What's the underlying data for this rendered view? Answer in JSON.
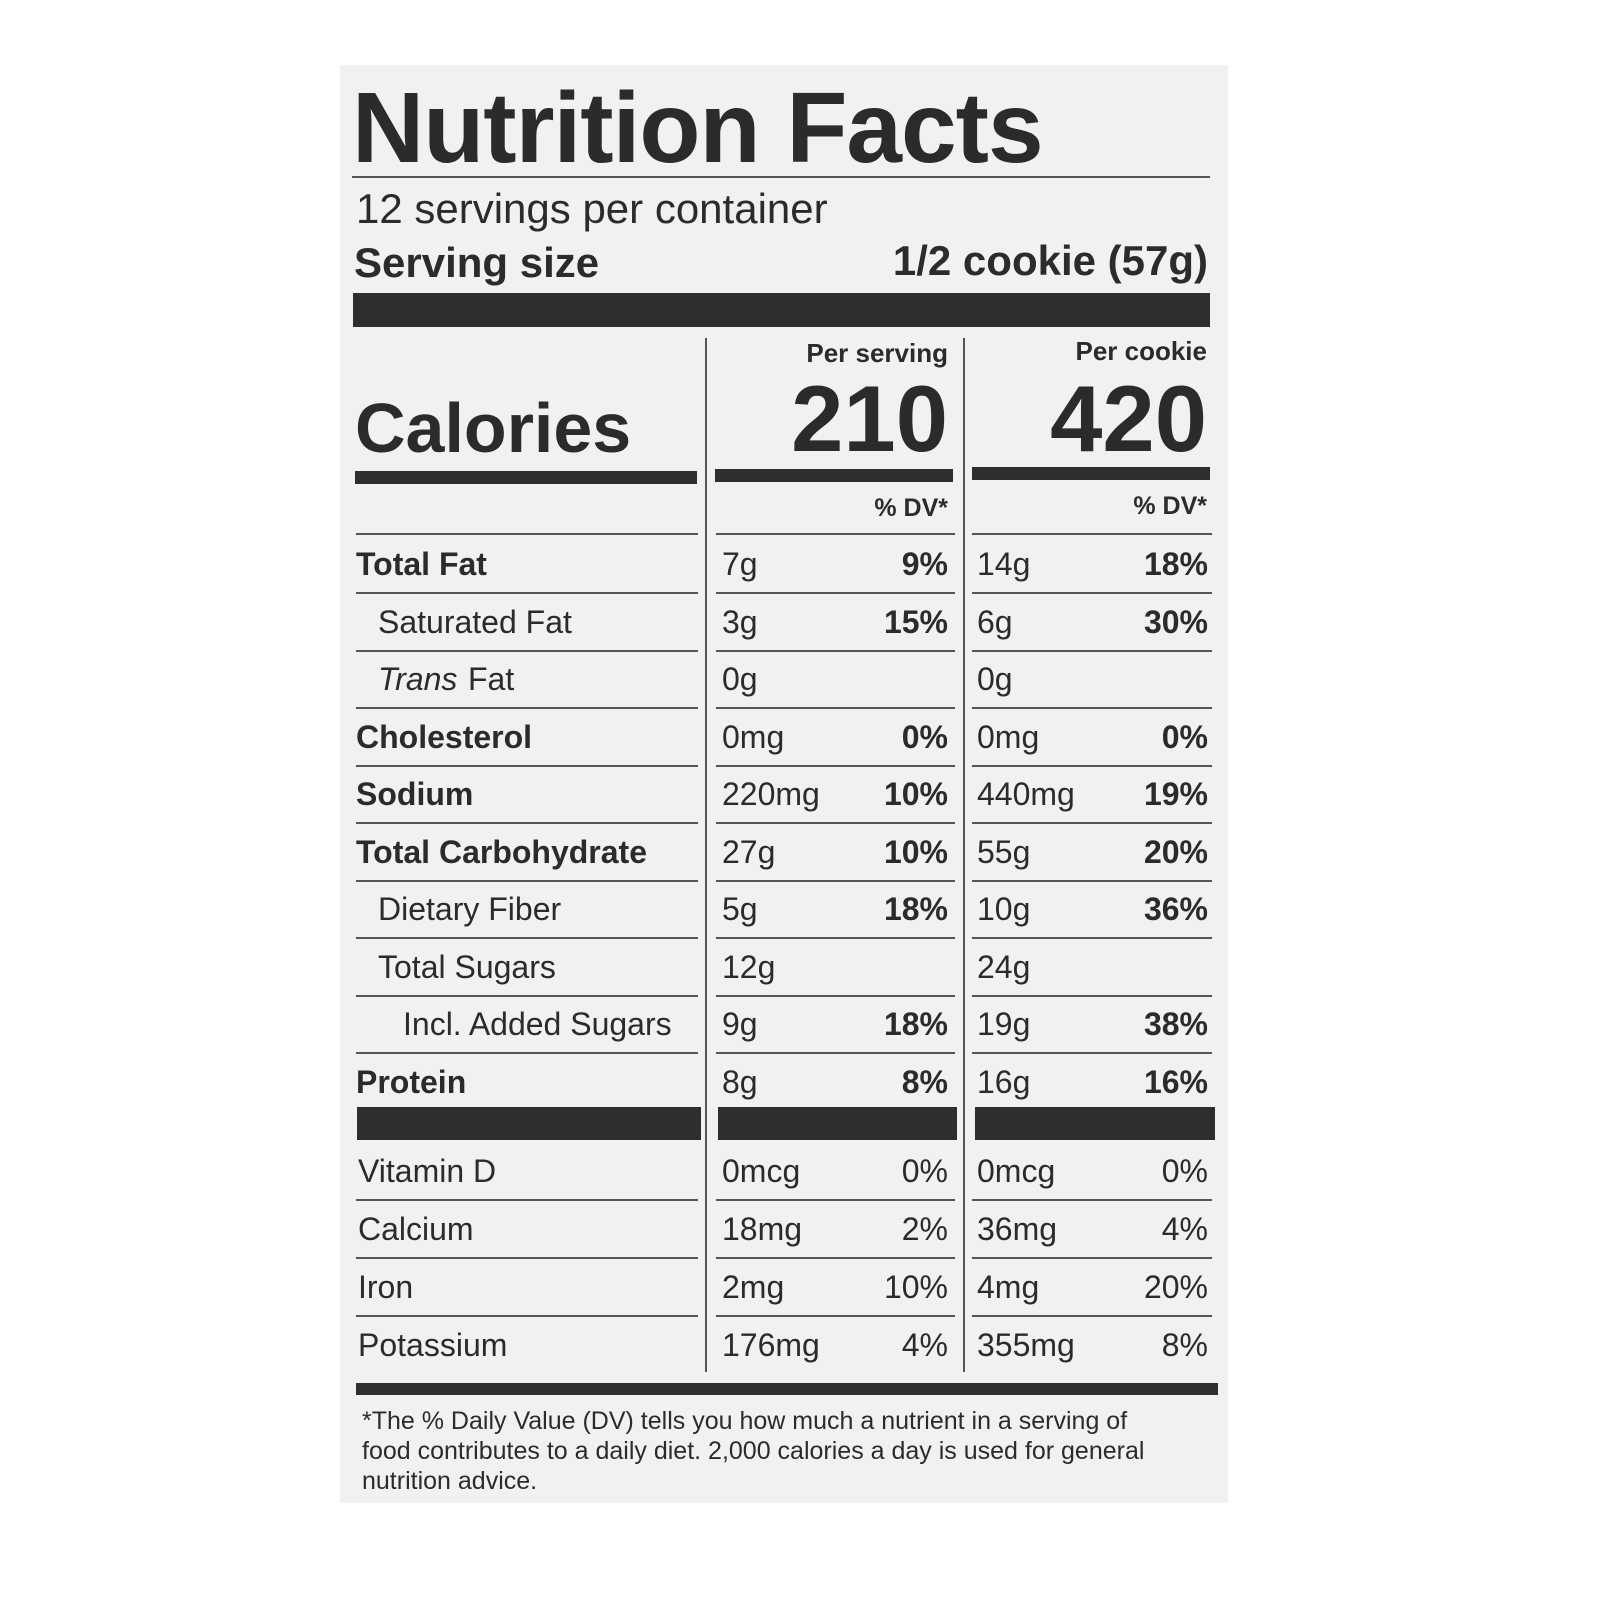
{
  "header": {
    "title": "Nutrition Facts",
    "servings": "12 servings per container",
    "serving_size_label": "Serving size",
    "serving_size_value": "1/2 cookie (57g)"
  },
  "columns": [
    "Per serving",
    "Per cookie"
  ],
  "calories": {
    "label": "Calories",
    "values": [
      "210",
      "420"
    ]
  },
  "dv_header": [
    "% DV*",
    "% DV*"
  ],
  "nutrients": [
    {
      "label": "Total Fat",
      "per_serving": "7g",
      "per_serving_dv": "9%",
      "per_cookie": "14g",
      "per_cookie_dv": "18%"
    },
    {
      "label": "Saturated Fat",
      "per_serving": "3g",
      "per_serving_dv": "15%",
      "per_cookie": "6g",
      "per_cookie_dv": "30%"
    },
    {
      "label": [
        "Trans",
        "Fat"
      ],
      "per_serving": "0g",
      "per_cookie": "0g"
    },
    {
      "label": "Cholesterol",
      "per_serving": "0mg",
      "per_serving_dv": "0%",
      "per_cookie": "0mg",
      "per_cookie_dv": "0%"
    },
    {
      "label": "Sodium",
      "per_serving": "220mg",
      "per_serving_dv": "10%",
      "per_cookie": "440mg",
      "per_cookie_dv": "19%"
    },
    {
      "label": "Total Carbohydrate",
      "per_serving": "27g",
      "per_serving_dv": "10%",
      "per_cookie": "55g",
      "per_cookie_dv": "20%"
    },
    {
      "label": "Dietary Fiber",
      "per_serving": "5g",
      "per_serving_dv": "18%",
      "per_cookie": "10g",
      "per_cookie_dv": "36%"
    },
    {
      "label": "Total Sugars",
      "per_serving": "12g",
      "per_cookie": "24g"
    },
    {
      "label": "Incl. Added Sugars",
      "per_serving": "9g",
      "per_serving_dv": "18%",
      "per_cookie": "19g",
      "per_cookie_dv": "38%"
    },
    {
      "label": "Protein",
      "per_serving": "8g",
      "per_serving_dv": "8%",
      "per_cookie": "16g",
      "per_cookie_dv": "16%"
    }
  ],
  "vitamins": [
    {
      "label": "Vitamin D",
      "per_serving": "0mcg",
      "per_serving_dv": "0%",
      "per_cookie": "0mcg",
      "per_cookie_dv": "0%"
    },
    {
      "label": "Calcium",
      "per_serving": "18mg",
      "per_serving_dv": "2%",
      "per_cookie": "36mg",
      "per_cookie_dv": "4%"
    },
    {
      "label": "Iron",
      "per_serving": "2mg",
      "per_serving_dv": "10%",
      "per_cookie": "4mg",
      "per_cookie_dv": "20%"
    },
    {
      "label": "Potassium",
      "per_serving": "176mg",
      "per_serving_dv": "4%",
      "per_cookie": "355mg",
      "per_cookie_dv": "8%"
    }
  ],
  "footnote": "*The % Daily Value (DV) tells you how much a nutrient in a serving of food contributes to a daily diet. 2,000 calories a day is used for general nutrition advice."
}
